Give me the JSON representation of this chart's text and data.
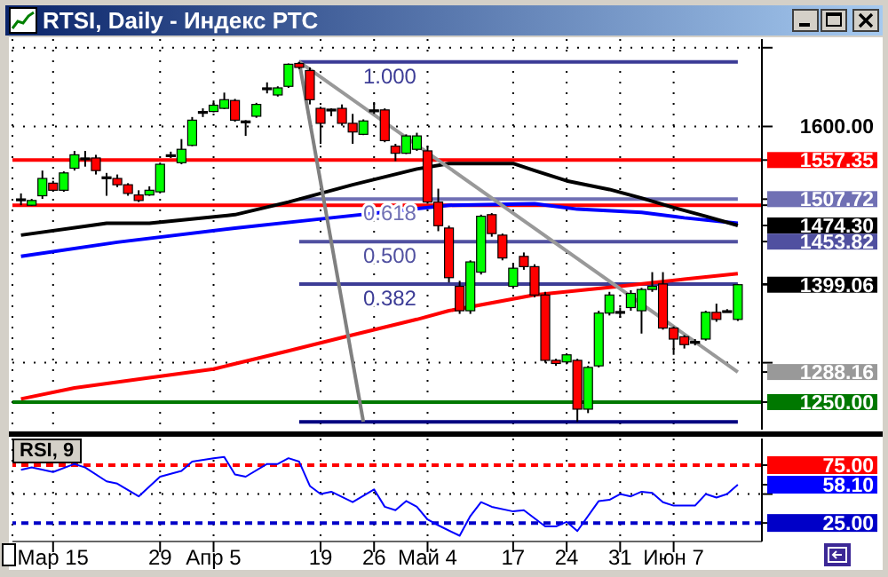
{
  "chart_data": [
    {
      "type": "candlestick",
      "title": "RTSI, Daily - Индекс РТС",
      "categories": [
        null,
        null,
        null,
        null,
        null,
        null,
        null,
        null,
        null,
        null,
        null,
        null,
        null,
        null,
        null,
        null,
        null,
        null,
        null,
        null,
        null,
        null,
        null,
        null,
        null,
        null,
        null,
        null,
        null,
        null,
        null,
        null,
        null,
        null,
        null,
        null,
        null,
        null,
        null,
        null,
        null,
        null,
        null,
        null,
        null,
        null,
        null,
        null,
        null,
        null,
        null,
        null,
        null,
        null,
        null,
        null,
        null,
        null,
        null,
        null,
        null,
        null,
        null,
        null,
        null,
        null,
        null,
        null
      ],
      "ohlc": [
        [
          1508,
          1515,
          1500,
          1508
        ],
        [
          1500,
          1508,
          1499,
          1506
        ],
        [
          1512,
          1544,
          1508,
          1534
        ],
        [
          1528,
          1531,
          1517,
          1519
        ],
        [
          1519,
          1543,
          1517,
          1541
        ],
        [
          1547,
          1569,
          1544,
          1564
        ],
        [
          1560,
          1569,
          1549,
          1560
        ],
        [
          1560,
          1564,
          1539,
          1544
        ],
        [
          1536,
          1541,
          1512,
          1536
        ],
        [
          1534,
          1539,
          1523,
          1526
        ],
        [
          1526,
          1528,
          1512,
          1515
        ],
        [
          1513,
          1519,
          1504,
          1506
        ],
        [
          1513,
          1524,
          1512,
          1519
        ],
        [
          1517,
          1554,
          1515,
          1552
        ],
        [
          1564,
          1568,
          1560,
          1564
        ],
        [
          1554,
          1584,
          1552,
          1571
        ],
        [
          1576,
          1612,
          1575,
          1608
        ],
        [
          1619,
          1623,
          1612,
          1619
        ],
        [
          1619,
          1633,
          1618,
          1627
        ],
        [
          1623,
          1643,
          1622,
          1634
        ],
        [
          1633,
          1635,
          1606,
          1608
        ],
        [
          1607,
          1608,
          1588,
          1607
        ],
        [
          1613,
          1630,
          1611,
          1628
        ],
        [
          1649,
          1656,
          1642,
          1649
        ],
        [
          1640,
          1651,
          1638,
          1649
        ],
        [
          1651,
          1680,
          1649,
          1679
        ],
        [
          1680,
          1682,
          1673,
          1675
        ],
        [
          1671,
          1675,
          1628,
          1634
        ],
        [
          1623,
          1625,
          1578,
          1604
        ],
        [
          1622,
          1623,
          1613,
          1622
        ],
        [
          1623,
          1628,
          1601,
          1604
        ],
        [
          1604,
          1616,
          1578,
          1593
        ],
        [
          1590,
          1609,
          1589,
          1607
        ],
        [
          1621,
          1631,
          1616,
          1621
        ],
        [
          1621,
          1623,
          1580,
          1582
        ],
        [
          1575,
          1578,
          1556,
          1566
        ],
        [
          1566,
          1590,
          1565,
          1588
        ],
        [
          1571,
          1592,
          1569,
          1588
        ],
        [
          1569,
          1575,
          1502,
          1504
        ],
        [
          1504,
          1521,
          1467,
          1474
        ],
        [
          1471,
          1474,
          1402,
          1408
        ],
        [
          1397,
          1404,
          1362,
          1366
        ],
        [
          1366,
          1430,
          1362,
          1428
        ],
        [
          1415,
          1488,
          1412,
          1486
        ],
        [
          1488,
          1490,
          1460,
          1464
        ],
        [
          1462,
          1464,
          1430,
          1433
        ],
        [
          1397,
          1425,
          1394,
          1420
        ],
        [
          1435,
          1440,
          1418,
          1422
        ],
        [
          1422,
          1425,
          1383,
          1386
        ],
        [
          1386,
          1390,
          1300,
          1303
        ],
        [
          1303,
          1305,
          1296,
          1299
        ],
        [
          1301,
          1312,
          1298,
          1310
        ],
        [
          1303,
          1305,
          1225,
          1241
        ],
        [
          1241,
          1296,
          1236,
          1294
        ],
        [
          1296,
          1366,
          1294,
          1363
        ],
        [
          1363,
          1390,
          1360,
          1386
        ],
        [
          1364,
          1370,
          1357,
          1365
        ],
        [
          1370,
          1392,
          1366,
          1388
        ],
        [
          1366,
          1395,
          1337,
          1393
        ],
        [
          1393,
          1415,
          1390,
          1397
        ],
        [
          1400,
          1415,
          1342,
          1344
        ],
        [
          1344,
          1346,
          1310,
          1330
        ],
        [
          1333,
          1335,
          1318,
          1323
        ],
        [
          1327,
          1330,
          1322,
          1327
        ],
        [
          1330,
          1366,
          1328,
          1364
        ],
        [
          1364,
          1375,
          1352,
          1355
        ],
        [
          1366,
          1368,
          1364,
          1366
        ],
        [
          1355,
          1400,
          1353,
          1399.06
        ]
      ],
      "colors": [
        "#000000",
        "#00ff00",
        "#00ff00",
        "#ff0000",
        "#00ff00",
        "#00ff00",
        "#000000",
        "#ff0000",
        "#000000",
        "#ff0000",
        "#ff0000",
        "#ff0000",
        "#00ff00",
        "#00ff00",
        "#000000",
        "#00ff00",
        "#00ff00",
        "#000000",
        "#00ff00",
        "#00ff00",
        "#ff0000",
        "#000000",
        "#00ff00",
        "#000000",
        "#00ff00",
        "#00ff00",
        "#ff0000",
        "#ff0000",
        "#ff0000",
        "#000000",
        "#ff0000",
        "#ff0000",
        "#00ff00",
        "#000000",
        "#ff0000",
        "#ff0000",
        "#00ff00",
        "#00ff00",
        "#ff0000",
        "#ff0000",
        "#ff0000",
        "#ff0000",
        "#00ff00",
        "#00ff00",
        "#ff0000",
        "#ff0000",
        "#00ff00",
        "#ff0000",
        "#ff0000",
        "#ff0000",
        "#ff0000",
        "#00ff00",
        "#ff0000",
        "#00ff00",
        "#00ff00",
        "#00ff00",
        "#000000",
        "#00ff00",
        "#00ff00",
        "#00ff00",
        "#ff0000",
        "#ff0000",
        "#ff0000",
        "#000000",
        "#00ff00",
        "#ff0000",
        "#000000",
        "#00ff00"
      ],
      "series": [
        {
          "type": "line",
          "color": "#3c3c96",
          "name": "1.000",
          "values": [
            null,
            null,
            null,
            null,
            null,
            null,
            null,
            null,
            null,
            null,
            null,
            null,
            null,
            null,
            null,
            null,
            null,
            null,
            null,
            null,
            null,
            null,
            null,
            null,
            null,
            null,
            1682,
            null,
            null,
            null,
            null,
            null,
            null,
            null,
            null,
            null,
            null,
            null,
            null,
            null,
            null,
            null,
            null,
            null,
            null,
            null,
            null,
            null,
            null,
            null,
            null,
            null,
            null,
            null,
            null,
            null,
            null,
            null,
            null,
            null,
            null,
            null,
            null,
            null,
            null,
            null,
            null,
            1682
          ]
        },
        {
          "type": "line",
          "color": "#7070b4",
          "name": "0.618",
          "values": [
            null,
            null,
            null,
            null,
            null,
            null,
            null,
            null,
            null,
            null,
            null,
            null,
            null,
            null,
            null,
            null,
            null,
            null,
            null,
            null,
            null,
            null,
            null,
            null,
            null,
            null,
            1507.72,
            null,
            null,
            null,
            null,
            null,
            null,
            null,
            null,
            null,
            null,
            null,
            null,
            null,
            null,
            null,
            null,
            null,
            null,
            null,
            null,
            null,
            null,
            null,
            null,
            null,
            null,
            null,
            null,
            null,
            null,
            null,
            null,
            null,
            null,
            null,
            null,
            null,
            null,
            null,
            null,
            1507.72
          ]
        },
        {
          "type": "line",
          "color": "#5050a0",
          "name": "0.500",
          "values": [
            null,
            null,
            null,
            null,
            null,
            null,
            null,
            null,
            null,
            null,
            null,
            null,
            null,
            null,
            null,
            null,
            null,
            null,
            null,
            null,
            null,
            null,
            null,
            null,
            null,
            null,
            1453.82,
            null,
            null,
            null,
            null,
            null,
            null,
            null,
            null,
            null,
            null,
            null,
            null,
            null,
            null,
            null,
            null,
            null,
            null,
            null,
            null,
            null,
            null,
            null,
            null,
            null,
            null,
            null,
            null,
            null,
            null,
            null,
            null,
            null,
            null,
            null,
            null,
            null,
            null,
            null,
            null,
            1453.82
          ]
        },
        {
          "type": "line",
          "color": "#3c3c96",
          "name": "0.382",
          "values": [
            null,
            null,
            null,
            null,
            null,
            null,
            null,
            null,
            null,
            null,
            null,
            null,
            null,
            null,
            null,
            null,
            null,
            null,
            null,
            null,
            null,
            null,
            null,
            null,
            null,
            null,
            1400,
            null,
            null,
            null,
            null,
            null,
            null,
            null,
            null,
            null,
            null,
            null,
            null,
            null,
            null,
            null,
            null,
            null,
            null,
            null,
            null,
            null,
            null,
            null,
            null,
            null,
            null,
            null,
            null,
            null,
            null,
            null,
            null,
            null,
            null,
            null,
            null,
            null,
            null,
            null,
            null,
            1400
          ]
        },
        {
          "type": "line",
          "color": "#000080",
          "values": [
            null,
            null,
            null,
            null,
            null,
            null,
            null,
            null,
            null,
            null,
            null,
            null,
            null,
            null,
            null,
            null,
            null,
            null,
            null,
            null,
            null,
            null,
            null,
            null,
            null,
            null,
            1225,
            null,
            null,
            null,
            null,
            null,
            null,
            null,
            null,
            null,
            null,
            null,
            null,
            null,
            null,
            null,
            null,
            null,
            null,
            null,
            null,
            null,
            null,
            null,
            null,
            null,
            null,
            null,
            null,
            null,
            null,
            null,
            null,
            null,
            null,
            null,
            null,
            null,
            null,
            null,
            null,
            1225
          ]
        },
        {
          "type": "line",
          "color": "#ff0000",
          "values": [
            1254,
            null,
            null,
            null,
            null,
            1268,
            null,
            null,
            null,
            null,
            null,
            null,
            1281,
            null,
            null,
            null,
            null,
            null,
            1292,
            null,
            null,
            null,
            null,
            null,
            null,
            1315,
            null,
            null,
            null,
            null,
            1332,
            null,
            null,
            null,
            null,
            null,
            null,
            1355,
            null,
            null,
            1366,
            null,
            null,
            null,
            null,
            null,
            null,
            null,
            1386,
            null,
            null,
            null,
            null,
            null,
            null,
            null,
            1397,
            null,
            null,
            null,
            null,
            null,
            1406,
            null,
            null,
            null,
            null,
            1413
          ]
        },
        {
          "type": "line",
          "color": "#0000ff",
          "values": [
            1435,
            null,
            null,
            null,
            null,
            null,
            null,
            null,
            null,
            1453,
            null,
            null,
            null,
            null,
            null,
            null,
            null,
            null,
            null,
            null,
            1471,
            null,
            null,
            null,
            null,
            null,
            null,
            null,
            null,
            1484,
            null,
            null,
            null,
            null,
            null,
            null,
            null,
            null,
            null,
            null,
            1500,
            null,
            null,
            null,
            null,
            null,
            null,
            null,
            1502,
            null,
            null,
            null,
            1495,
            null,
            null,
            null,
            null,
            null,
            1491,
            null,
            null,
            null,
            1484,
            null,
            null,
            null,
            null,
            1477
          ]
        },
        {
          "type": "line",
          "color": "#000000",
          "values": [
            1462,
            null,
            null,
            null,
            null,
            null,
            null,
            null,
            1477,
            null,
            null,
            null,
            1477,
            null,
            null,
            null,
            null,
            null,
            null,
            null,
            1488,
            null,
            null,
            null,
            null,
            1504,
            null,
            null,
            null,
            null,
            null,
            1526,
            null,
            null,
            null,
            null,
            null,
            1546,
            null,
            null,
            1553,
            null,
            null,
            null,
            null,
            null,
            1553,
            null,
            1544,
            null,
            null,
            1531,
            null,
            null,
            null,
            1520,
            null,
            null,
            1509,
            null,
            null,
            1497,
            null,
            null,
            1486,
            null,
            null,
            1474.3
          ]
        },
        {
          "type": "line",
          "color": "#999999",
          "values": [
            null,
            null,
            null,
            null,
            null,
            null,
            null,
            null,
            null,
            null,
            null,
            null,
            null,
            null,
            null,
            null,
            null,
            null,
            null,
            null,
            null,
            null,
            null,
            null,
            null,
            null,
            1682,
            null,
            null,
            null,
            null,
            null,
            null,
            null,
            null,
            null,
            null,
            null,
            null,
            null,
            null,
            null,
            null,
            null,
            null,
            null,
            null,
            null,
            null,
            null,
            null,
            null,
            null,
            null,
            null,
            null,
            null,
            null,
            null,
            null,
            null,
            null,
            null,
            null,
            null,
            null,
            null,
            1288.16
          ]
        },
        {
          "type": "line",
          "color": "#808080",
          "values": [
            null,
            null,
            null,
            null,
            null,
            null,
            null,
            null,
            null,
            null,
            null,
            null,
            null,
            null,
            null,
            null,
            null,
            null,
            null,
            null,
            null,
            null,
            null,
            null,
            null,
            null,
            1682,
            null,
            null,
            null,
            null,
            null,
            1225,
            null,
            null,
            null,
            null,
            null,
            null,
            null,
            null,
            null,
            null,
            null,
            null,
            null,
            null,
            null,
            null,
            null,
            null,
            null,
            null,
            null,
            null,
            null,
            null,
            null,
            null,
            null,
            null,
            null,
            null,
            null,
            null,
            null,
            null,
            null
          ]
        }
      ],
      "ylim": [
        1215,
        1711
      ],
      "yticks": [
        {
          "value": 1250,
          "label": "1250.00"
        },
        {
          "value": 1288.16,
          "label": "1288.16"
        },
        {
          "value": 1300,
          "label": null
        },
        {
          "value": 1399.06,
          "label": "1399.06"
        },
        {
          "value": 1400,
          "label": null
        },
        {
          "value": 1453.82,
          "label": "1453.82"
        },
        {
          "value": 1474.3,
          "label": "1474.30"
        },
        {
          "value": 1500,
          "label": null
        },
        {
          "value": 1507.72,
          "label": "1507.72"
        },
        {
          "value": 1557.35,
          "label": "1557.35"
        },
        {
          "value": 1600,
          "label": "1600.00"
        },
        {
          "value": 1700,
          "label": null
        }
      ],
      "grid": true,
      "tick_labels": "y",
      "ref_lines": [
        {
          "axis": "y",
          "value": 1557.35,
          "color": "#ff0000"
        },
        {
          "axis": "y",
          "value": 1500,
          "color": "#ff0000"
        },
        {
          "axis": "y",
          "value": 1250,
          "color": "#007800"
        }
      ]
    },
    {
      "type": "line",
      "title": "RSI, 9",
      "categories": [
        null,
        null,
        null,
        "Мар 15",
        null,
        null,
        null,
        null,
        null,
        null,
        null,
        null,
        null,
        "29",
        null,
        null,
        null,
        null,
        "Апр 5",
        null,
        null,
        null,
        null,
        null,
        null,
        null,
        null,
        null,
        "19",
        null,
        null,
        null,
        null,
        "26",
        null,
        null,
        null,
        null,
        "Май 4",
        null,
        null,
        null,
        null,
        null,
        null,
        null,
        "17",
        null,
        null,
        null,
        null,
        "24",
        null,
        null,
        null,
        null,
        "31",
        null,
        null,
        null,
        null,
        "Июн 7",
        null,
        null,
        null,
        null,
        null,
        null
      ],
      "series": [
        {
          "type": "line",
          "color": "#0000ff",
          "values": [
            71,
            73,
            null,
            69,
            null,
            76,
            73,
            null,
            61,
            59,
            null,
            48,
            null,
            65,
            null,
            70,
            78,
            null,
            81,
            82,
            67,
            65,
            null,
            76,
            76,
            81,
            78,
            57,
            50,
            52,
            null,
            43,
            null,
            54,
            39,
            36,
            44,
            39,
            28,
            23,
            null,
            14,
            31,
            43,
            39,
            null,
            35,
            36,
            null,
            22,
            22,
            26,
            18,
            null,
            44,
            45,
            50,
            48,
            52,
            51,
            43,
            40,
            null,
            40,
            50,
            47,
            50,
            58.1
          ]
        }
      ],
      "ylim": [
        9,
        98
      ],
      "yticks": [
        {
          "value": 25,
          "label": "25.00"
        },
        {
          "value": 50,
          "label": null
        },
        {
          "value": 58.1,
          "label": "58.10"
        },
        {
          "value": 75,
          "label": "75.00"
        }
      ],
      "grid": true,
      "tick_labels": "xy",
      "ref_lines": [
        {
          "axis": "y",
          "value": 75,
          "color": "#ff0000",
          "line_style": "dashed"
        },
        {
          "axis": "y",
          "value": 25,
          "color": "#0000c8",
          "line_style": "dashed"
        }
      ]
    }
  ]
}
